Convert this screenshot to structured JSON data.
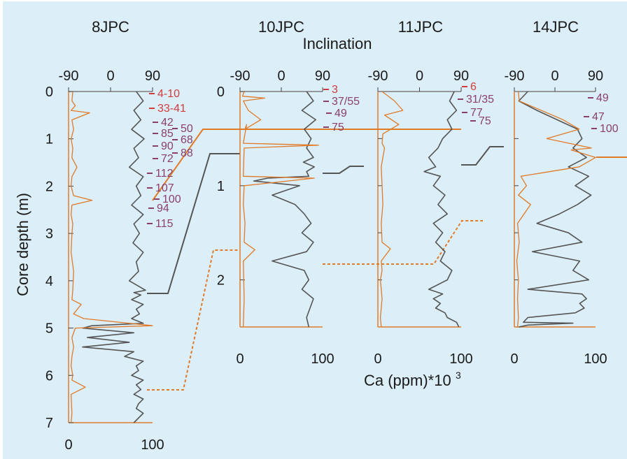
{
  "colors": {
    "background": "#dceef7",
    "ca": "#e07b2a",
    "inclination": "#555555",
    "red_label": "#d23c3c",
    "purple_label": "#8a3f6d",
    "axis": "#e07b2a",
    "tie": "#e07b2a",
    "tie_dark": "#555555"
  },
  "texts": {
    "top_axis_label": "Inclination",
    "bottom_axis_label": "Ca (ppm)*10",
    "bottom_axis_sup": "3",
    "y_axis_label": "Core depth (m)"
  },
  "chart_data": [
    {
      "type": "line",
      "title": "8JPC",
      "inclination_ticks": [
        "-90",
        "0",
        "90"
      ],
      "ca_ticks": [
        "0",
        "100"
      ],
      "depth_ticks": [
        "0",
        "1",
        "2",
        "3",
        "4",
        "5",
        "6",
        "7"
      ],
      "ylim": [
        0,
        7
      ],
      "inclination_lim": [
        -90,
        90
      ],
      "ca_lim": [
        0,
        100
      ],
      "series": [
        {
          "name": "Inclination",
          "x": [
            55,
            70,
            50,
            65,
            45,
            72,
            50,
            60,
            40,
            70,
            55,
            65,
            45,
            70,
            50,
            62,
            48,
            70,
            55,
            60,
            40,
            75,
            50,
            65,
            45,
            70,
            55,
            62,
            45,
            70,
            -40,
            -60,
            50,
            -50,
            40,
            -60,
            50,
            30,
            70,
            55,
            60,
            45,
            70,
            55,
            65,
            50,
            70,
            60,
            55,
            70,
            50
          ],
          "y": [
            0,
            0.2,
            0.4,
            0.6,
            0.8,
            1.0,
            1.2,
            1.4,
            1.6,
            1.8,
            2.0,
            2.2,
            2.4,
            2.6,
            2.8,
            3.0,
            3.2,
            3.4,
            3.6,
            3.8,
            4.0,
            4.2,
            4.25,
            4.3,
            4.4,
            4.5,
            4.6,
            4.7,
            4.8,
            4.9,
            4.95,
            5.0,
            5.1,
            5.2,
            5.3,
            5.4,
            5.5,
            5.6,
            5.7,
            5.8,
            5.9,
            6.0,
            6.1,
            6.2,
            6.3,
            6.4,
            6.5,
            6.6,
            6.7,
            6.8,
            7.0
          ]
        },
        {
          "name": "Ca",
          "x": [
            5,
            4,
            8,
            3,
            25,
            4,
            6,
            3,
            5,
            4,
            10,
            4,
            3,
            6,
            28,
            4,
            3,
            5,
            4,
            3,
            6,
            5,
            4,
            15,
            6,
            18,
            100,
            8,
            4,
            6,
            4,
            3,
            5,
            4,
            20,
            3,
            4,
            3
          ],
          "y": [
            0,
            0.2,
            0.3,
            0.4,
            0.45,
            0.6,
            0.8,
            1.0,
            1.2,
            1.4,
            1.6,
            1.8,
            2.0,
            2.2,
            2.3,
            2.4,
            2.6,
            2.8,
            3.0,
            3.4,
            3.8,
            4.2,
            4.4,
            4.5,
            4.7,
            4.8,
            4.95,
            5.0,
            5.2,
            5.4,
            5.6,
            5.8,
            6.0,
            6.1,
            6.25,
            6.4,
            6.8,
            7.0
          ]
        }
      ],
      "annotations": [
        {
          "text": "4-10",
          "color": "red"
        },
        {
          "text": "33-41",
          "color": "red"
        },
        {
          "text": "42",
          "color": "purple"
        },
        {
          "text": "50",
          "color": "purple"
        },
        {
          "text": "85",
          "color": "purple"
        },
        {
          "text": "68",
          "color": "purple"
        },
        {
          "text": "90",
          "color": "purple"
        },
        {
          "text": "88",
          "color": "purple"
        },
        {
          "text": "72",
          "color": "purple"
        },
        {
          "text": "112",
          "color": "purple"
        },
        {
          "text": "107",
          "color": "purple"
        },
        {
          "text": "100",
          "color": "purple"
        },
        {
          "text": "94",
          "color": "purple"
        },
        {
          "text": "115",
          "color": "purple"
        }
      ]
    },
    {
      "type": "line",
      "title": "10JPC",
      "inclination_ticks": [
        "-90",
        "0",
        "90"
      ],
      "ca_ticks": [
        "0",
        "100"
      ],
      "depth_ticks": [
        "0",
        "1",
        "2"
      ],
      "ylim": [
        0,
        2.5
      ],
      "inclination_lim": [
        -90,
        90
      ],
      "ca_lim": [
        0,
        100
      ],
      "series": [
        {
          "name": "Inclination",
          "x": [
            55,
            70,
            45,
            75,
            50,
            65,
            55,
            70,
            48,
            72,
            55,
            60,
            -30,
            -60,
            40,
            -20,
            30,
            50,
            65,
            45,
            70,
            55,
            -20,
            50,
            60,
            45,
            70,
            55,
            60
          ],
          "y": [
            0,
            0.1,
            0.2,
            0.3,
            0.4,
            0.5,
            0.6,
            0.7,
            0.75,
            0.8,
            0.85,
            0.9,
            0.92,
            0.95,
            1.0,
            1.1,
            1.2,
            1.3,
            1.4,
            1.5,
            1.6,
            1.7,
            1.8,
            1.9,
            2.0,
            2.1,
            2.2,
            2.4,
            2.5
          ]
        },
        {
          "name": "Ca",
          "x": [
            5,
            3,
            30,
            4,
            10,
            25,
            6,
            8,
            5,
            4,
            95,
            5,
            4,
            90,
            5,
            4,
            6,
            5,
            18,
            4,
            5,
            4
          ],
          "y": [
            0,
            0.05,
            0.07,
            0.1,
            0.2,
            0.3,
            0.4,
            0.35,
            0.5,
            0.55,
            0.57,
            0.6,
            0.9,
            0.92,
            1.0,
            1.2,
            1.4,
            1.6,
            1.68,
            1.8,
            2.2,
            2.5
          ]
        }
      ],
      "annotations": [
        {
          "text": "3",
          "color": "red"
        },
        {
          "text": "37/55",
          "color": "purple"
        },
        {
          "text": "49",
          "color": "purple"
        },
        {
          "text": "75",
          "color": "purple"
        }
      ]
    },
    {
      "type": "line",
      "title": "11JPC",
      "inclination_ticks": [
        "-90",
        "0",
        "90"
      ],
      "ca_ticks": [
        "0",
        "100"
      ],
      "depth_ticks": [],
      "ylim": [
        0,
        2.5
      ],
      "inclination_lim": [
        -90,
        90
      ],
      "ca_lim": [
        0,
        100
      ],
      "series": [
        {
          "name": "Inclination",
          "x": [
            75,
            65,
            80,
            60,
            70,
            50,
            40,
            20,
            35,
            10,
            45,
            30,
            55,
            40,
            60,
            30,
            50,
            35,
            55,
            45,
            70,
            60,
            20,
            50,
            30,
            45,
            35,
            55,
            60,
            80,
            85
          ],
          "y": [
            0,
            0.1,
            0.2,
            0.3,
            0.4,
            0.5,
            0.6,
            0.7,
            0.8,
            0.85,
            0.9,
            1.0,
            1.1,
            1.2,
            1.3,
            1.4,
            1.5,
            1.6,
            1.7,
            1.8,
            1.9,
            2.0,
            2.1,
            2.15,
            2.2,
            2.25,
            2.3,
            2.35,
            2.4,
            2.45,
            2.5
          ]
        },
        {
          "name": "Ca",
          "x": [
            5,
            20,
            30,
            8,
            25,
            6,
            5,
            8,
            4,
            5,
            6,
            4,
            5,
            15,
            4,
            5,
            3,
            4,
            5,
            4,
            3,
            4
          ],
          "y": [
            0,
            0.1,
            0.2,
            0.25,
            0.35,
            0.45,
            0.55,
            0.6,
            0.8,
            1.0,
            1.2,
            1.4,
            1.6,
            1.67,
            1.8,
            1.9,
            2.0,
            2.1,
            2.2,
            2.3,
            2.4,
            2.5
          ]
        }
      ],
      "annotations": [
        {
          "text": "6",
          "color": "red"
        },
        {
          "text": "31/35",
          "color": "purple"
        },
        {
          "text": "77",
          "color": "purple"
        },
        {
          "text": "75",
          "color": "purple"
        }
      ]
    },
    {
      "type": "line",
      "title": "14JPC",
      "inclination_ticks": [
        "-90",
        "0",
        "90"
      ],
      "ca_ticks": [
        "0",
        "100"
      ],
      "depth_ticks": [],
      "ylim": [
        0,
        2.5
      ],
      "inclination_lim": [
        -90,
        90
      ],
      "ca_lim": [
        0,
        100
      ],
      "series": [
        {
          "name": "Inclination",
          "x": [
            -60,
            -80,
            -40,
            50,
            60,
            40,
            70,
            30,
            75,
            45,
            80,
            50,
            10,
            -40,
            30,
            60,
            -50,
            55,
            40,
            75,
            -60,
            60,
            70,
            55,
            65,
            45,
            -60,
            -70,
            40,
            -60,
            -80
          ],
          "y": [
            0,
            0.1,
            0.2,
            0.4,
            0.5,
            0.6,
            0.7,
            0.8,
            0.9,
            1.0,
            1.1,
            1.2,
            1.3,
            1.4,
            1.5,
            1.6,
            1.7,
            1.8,
            1.9,
            2.0,
            2.1,
            2.15,
            2.2,
            2.25,
            2.3,
            2.35,
            2.4,
            2.45,
            2.46,
            2.48,
            2.5
          ]
        },
        {
          "name": "Ca",
          "x": [
            5,
            6,
            60,
            80,
            40,
            95,
            70,
            100,
            80,
            8,
            15,
            5,
            20,
            4,
            6,
            3,
            5,
            4,
            5,
            4
          ],
          "y": [
            0,
            0.1,
            0.3,
            0.4,
            0.5,
            0.6,
            0.62,
            0.7,
            0.8,
            0.9,
            1.0,
            1.1,
            1.2,
            1.4,
            1.6,
            1.8,
            2.0,
            2.2,
            2.4,
            2.5
          ]
        }
      ],
      "annotations": [
        {
          "text": "49",
          "color": "purple"
        },
        {
          "text": "47",
          "color": "purple"
        },
        {
          "text": "100",
          "color": "purple"
        }
      ]
    }
  ]
}
